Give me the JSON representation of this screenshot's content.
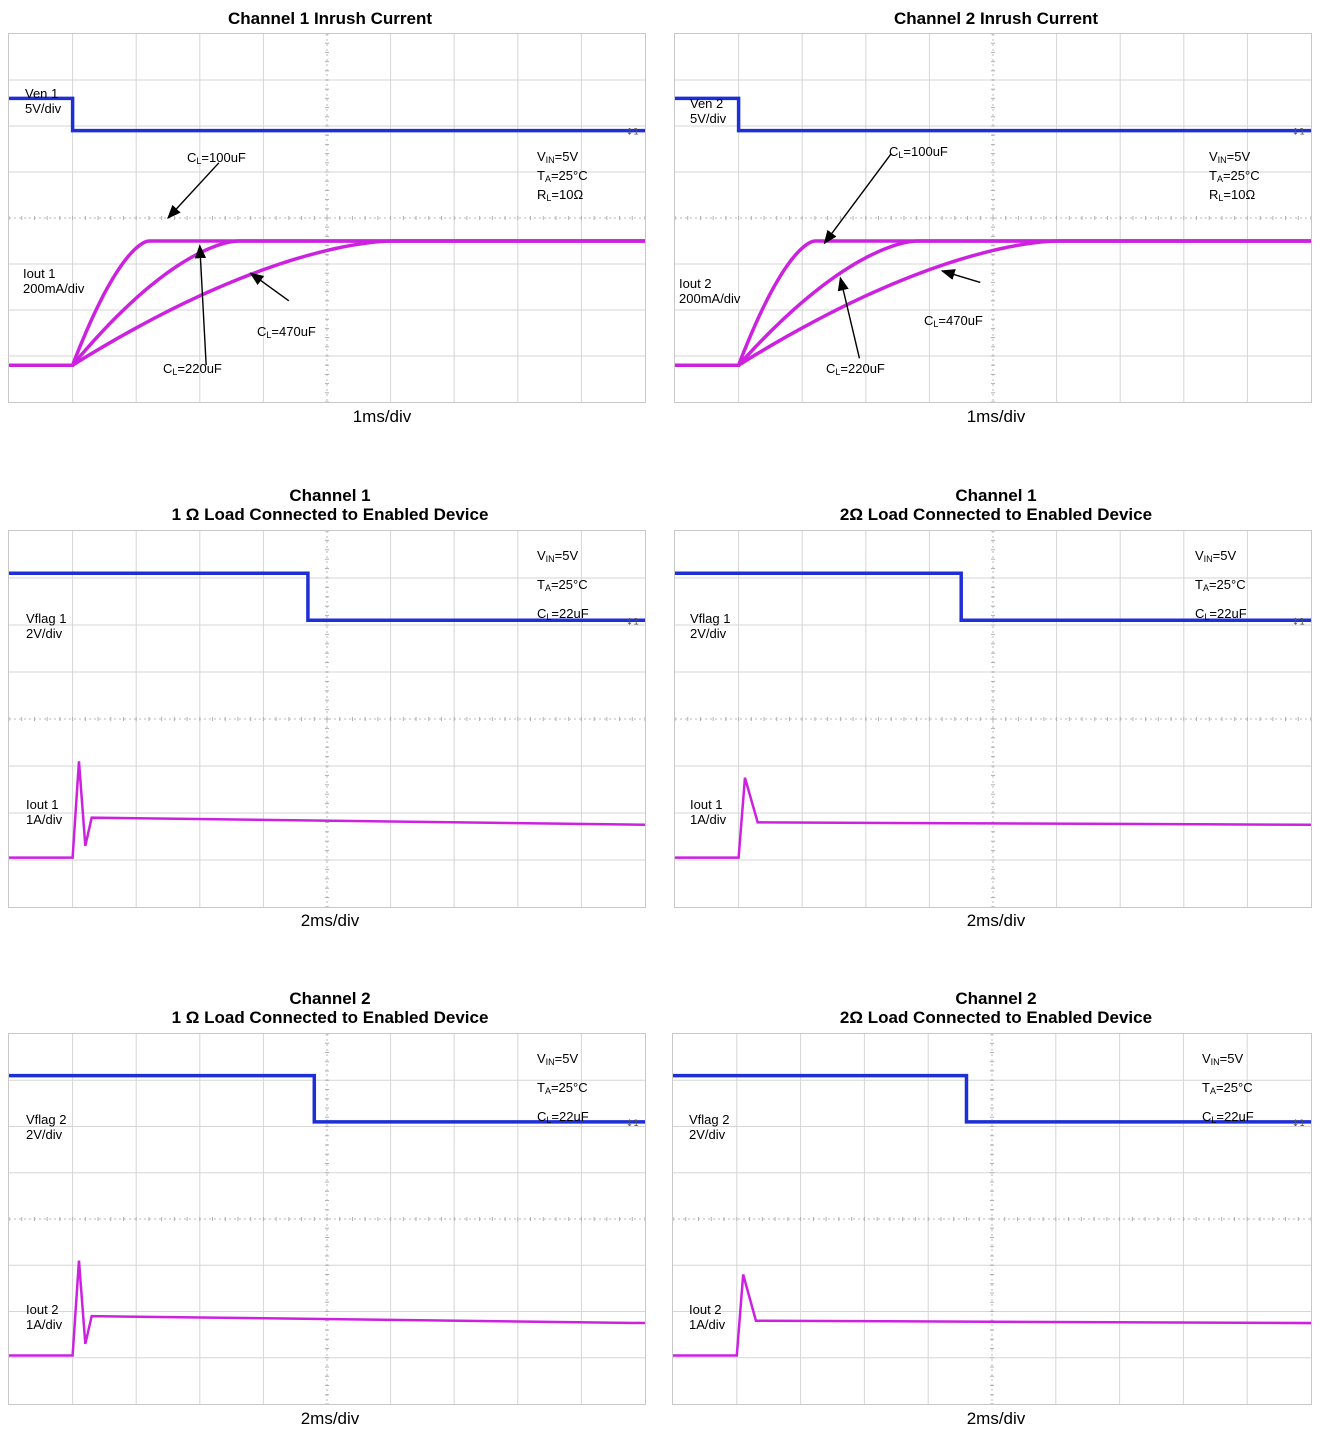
{
  "chart_data": [
    {
      "type": "line",
      "title": "Channel 1 Inrush Current",
      "xlabel": "1ms/div",
      "divisions": {
        "x": 10,
        "y": 8
      },
      "top_trace": {
        "label_line1": "Ven 1",
        "label_line2": "5V/div",
        "color": "#1f2fd6",
        "x": [
          0,
          1,
          1,
          10
        ],
        "y": [
          6.6,
          6.6,
          5.9,
          5.9
        ]
      },
      "bottom_trace": {
        "label_line1": "Iout 1",
        "label_line2": "200mA/div",
        "color": "#cc22e0"
      },
      "conditions": [
        "V_IN=5V",
        "T_A=25°C",
        "R_L=10Ω"
      ],
      "series": [
        {
          "name": "C_L=100uF",
          "x": [
            0,
            1,
            2.2,
            10
          ],
          "y": [
            0.8,
            0.8,
            3.5,
            3.5
          ]
        },
        {
          "name": "C_L=220uF",
          "x": [
            0,
            1,
            3.6,
            10
          ],
          "y": [
            0.8,
            0.8,
            3.5,
            3.5
          ]
        },
        {
          "name": "C_L=470uF",
          "x": [
            0,
            1,
            6.0,
            10
          ],
          "y": [
            0.8,
            0.8,
            3.5,
            3.5
          ]
        }
      ],
      "annotations": [
        "C_L=100uF",
        "C_L=220uF",
        "C_L=470uF"
      ]
    },
    {
      "type": "line",
      "title": "Channel 2 Inrush Current",
      "xlabel": "1ms/div",
      "divisions": {
        "x": 10,
        "y": 8
      },
      "top_trace": {
        "label_line1": "Ven 2",
        "label_line2": "5V/div",
        "color": "#1f2fd6",
        "x": [
          0,
          1,
          1,
          10
        ],
        "y": [
          6.6,
          6.6,
          5.9,
          5.9
        ]
      },
      "bottom_trace": {
        "label_line1": "Iout 2",
        "label_line2": "200mA/div",
        "color": "#cc22e0"
      },
      "conditions": [
        "V_IN=5V",
        "T_A=25°C",
        "R_L=10Ω"
      ],
      "series": [
        {
          "name": "C_L=100uF",
          "x": [
            0,
            1,
            2.2,
            10
          ],
          "y": [
            0.8,
            0.8,
            3.5,
            3.5
          ]
        },
        {
          "name": "C_L=220uF",
          "x": [
            0,
            1,
            3.8,
            10
          ],
          "y": [
            0.8,
            0.8,
            3.5,
            3.5
          ]
        },
        {
          "name": "C_L=470uF",
          "x": [
            0,
            1,
            6.0,
            10
          ],
          "y": [
            0.8,
            0.8,
            3.5,
            3.5
          ]
        }
      ],
      "annotations": [
        "C_L=100uF",
        "C_L=220uF",
        "C_L=470uF"
      ]
    },
    {
      "type": "line",
      "title_line1": "Channel 1",
      "title_line2": "1 Ω Load Connected to Enabled Device",
      "xlabel": "2ms/div",
      "divisions": {
        "x": 10,
        "y": 8
      },
      "top_trace": {
        "label_line1": "Vflag 1",
        "label_line2": "2V/div",
        "color": "#1f2fd6",
        "x": [
          0,
          4.7,
          4.7,
          10
        ],
        "y": [
          7.1,
          7.1,
          6.1,
          6.1
        ]
      },
      "bottom_trace": {
        "label_line1": "Iout 1",
        "label_line2": "1A/div",
        "color": "#cc22e0",
        "x": [
          0,
          1,
          1.1,
          1.2,
          1.3,
          10
        ],
        "y": [
          1.05,
          1.05,
          3.1,
          1.3,
          1.9,
          1.75
        ]
      },
      "conditions": [
        "VIN=5V",
        "TA=25°C",
        "CL=22uF"
      ]
    },
    {
      "type": "line",
      "title_line1": "Channel 1",
      "title_line2": "2Ω Load Connected to Enabled Device",
      "xlabel": "2ms/div",
      "divisions": {
        "x": 10,
        "y": 8
      },
      "top_trace": {
        "label_line1": "Vflag 1",
        "label_line2": "2V/div",
        "color": "#1f2fd6",
        "x": [
          0,
          4.5,
          4.5,
          10
        ],
        "y": [
          7.1,
          7.1,
          6.1,
          6.1
        ]
      },
      "bottom_trace": {
        "label_line1": "Iout 1",
        "label_line2": "1A/div",
        "color": "#cc22e0",
        "x": [
          0,
          1,
          1.1,
          1.3,
          10
        ],
        "y": [
          1.05,
          1.05,
          2.75,
          1.8,
          1.75
        ]
      },
      "conditions": [
        "VIN=5V",
        "TA=25°C",
        "CL=22uF"
      ]
    },
    {
      "type": "line",
      "title_line1": "Channel 2",
      "title_line2": "1 Ω Load Connected to Enabled Device",
      "xlabel": "2ms/div",
      "divisions": {
        "x": 10,
        "y": 8
      },
      "top_trace": {
        "label_line1": "Vflag 2",
        "label_line2": "2V/div",
        "color": "#1f2fd6",
        "x": [
          0,
          4.8,
          4.8,
          10
        ],
        "y": [
          7.1,
          7.1,
          6.1,
          6.1
        ]
      },
      "bottom_trace": {
        "label_line1": "Iout 2",
        "label_line2": "1A/div",
        "color": "#cc22e0",
        "x": [
          0,
          1,
          1.1,
          1.2,
          1.3,
          10
        ],
        "y": [
          1.05,
          1.05,
          3.1,
          1.3,
          1.9,
          1.75
        ]
      },
      "conditions": [
        "VIN=5V",
        "TA=25°C",
        "CL=22uF"
      ]
    },
    {
      "type": "line",
      "title_line1": "Channel 2",
      "title_line2": "2Ω Load Connected to Enabled Device",
      "xlabel": "2ms/div",
      "divisions": {
        "x": 10,
        "y": 8
      },
      "top_trace": {
        "label_line1": "Vflag 2",
        "label_line2": "2V/div",
        "color": "#1f2fd6",
        "x": [
          0,
          4.6,
          4.6,
          10
        ],
        "y": [
          7.1,
          7.1,
          6.1,
          6.1
        ]
      },
      "bottom_trace": {
        "label_line1": "Iout 2",
        "label_line2": "1A/div",
        "color": "#cc22e0",
        "x": [
          0,
          1,
          1.1,
          1.3,
          10
        ],
        "y": [
          1.05,
          1.05,
          2.8,
          1.8,
          1.75
        ]
      },
      "conditions": [
        "VIN=5V",
        "TA=25°C",
        "CL=22uF"
      ]
    }
  ]
}
